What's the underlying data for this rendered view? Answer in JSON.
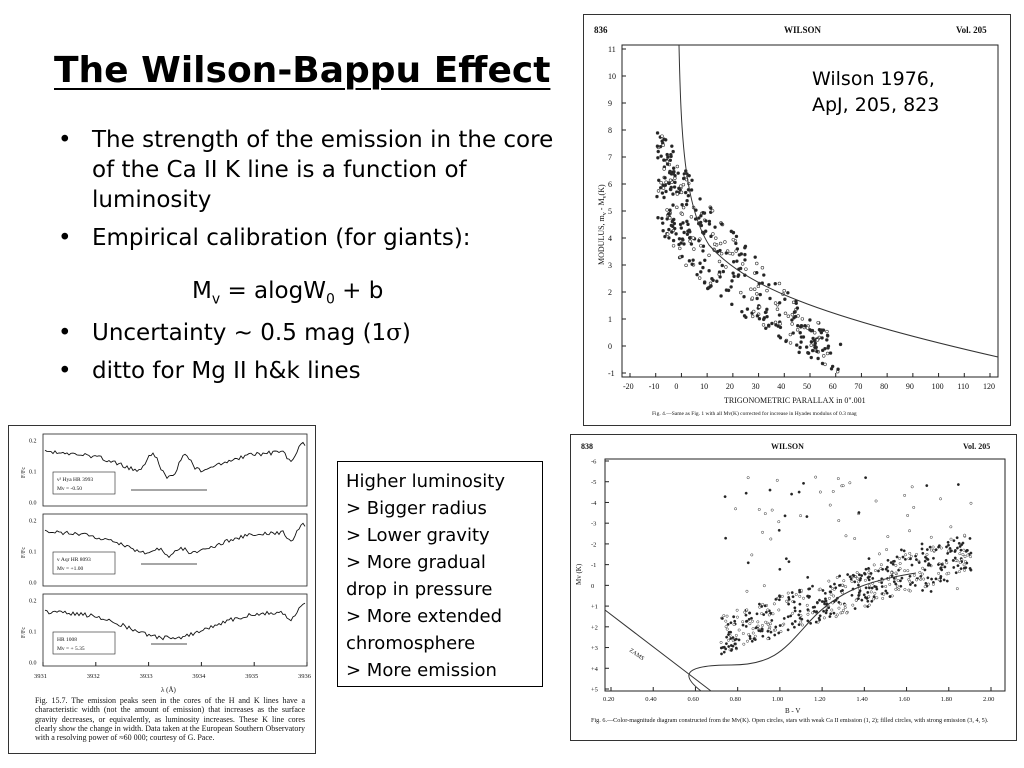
{
  "title": "The Wilson-Bappu Effect",
  "bullets": [
    "The strength of the emission in the core of the Ca II K line is a function of luminosity",
    "Empirical calibration (for giants):",
    "Uncertainty ~ 0.5 mag (1",
    "ditto for Mg II h&k lines"
  ],
  "bullet_char": "•",
  "formula": {
    "lhs": "M",
    "lhs_sub": "v",
    "mid": " = alogW",
    "mid_sub": "0",
    "rhs": " + b"
  },
  "uncertainty_sigma": "σ",
  "uncertainty_close": ")",
  "citation": "Wilson 1976,\nApJ, 205, 823",
  "luminosity_box": [
    "Higher luminosity",
    "> Bigger radius",
    "> Lower gravity",
    "> More gradual",
    "drop in pressure",
    "> More extended",
    "chromosphere",
    "> More emission"
  ],
  "fig_top": {
    "page": "836",
    "header": "WILSON",
    "vol": "Vol. 205",
    "ylabel": "MODULUS, m",
    "ylabel2": "v",
    "ylabel3": " - M",
    "ylabel4": "v",
    "ylabel5": "(K)",
    "xlabel": "TRIGONOMETRIC PARALLAX in 0\".001",
    "caption": "Fig. 4.—Same as Fig. 1 with all Mv(K) corrected for increase in Hyades modulus of 0.3 mag",
    "xticks": [
      "-20",
      "-10",
      "0",
      "10",
      "20",
      "30",
      "40",
      "50",
      "60",
      "70",
      "80",
      "90",
      "100",
      "110",
      "120"
    ],
    "yticks": [
      "11",
      "10",
      "9",
      "8",
      "7",
      "6",
      "5",
      "4",
      "3",
      "2",
      "1",
      "0",
      "-1"
    ]
  },
  "fig_bottom": {
    "page": "838",
    "header": "WILSON",
    "vol": "Vol. 205",
    "ylabel": "Mv (K)",
    "xlabel": "B - V",
    "zams": "ZAMS",
    "caption": "Fig. 6.—Color-magnitude diagram constructed from the Mv(K). Open circles, stars with weak Ca II emission (1, 2); filled circles, with strong emission (3, 4, 5).",
    "xticks": [
      "0.20",
      "0.40",
      "0.60",
      "0.80",
      "1.00",
      "1.20",
      "1.40",
      "1.60",
      "1.80",
      "2.00"
    ],
    "yticks": [
      "-6",
      "-5",
      "-4",
      "-3",
      "-2",
      "-1",
      "0",
      "+1",
      "+2",
      "+3",
      "+4",
      "+5"
    ]
  },
  "fig_spectra": {
    "panels": [
      {
        "star": "ν² Hya  HR 3993",
        "mag": "Mv = -0.50"
      },
      {
        "star": "ν Aqr  HR 8093",
        "mag": "Mv = +1.00"
      },
      {
        "star": "HR 1008",
        "mag": "Mv = + 5.35"
      }
    ],
    "yticks": [
      "0.2",
      "0.1",
      "0.0"
    ],
    "ylabel": "F/Fc",
    "xticks": [
      "3931",
      "3932",
      "3933",
      "3934",
      "3935",
      "3936"
    ],
    "xlabel": "λ (Å)",
    "caption": "Fig. 15.7.   The emission peaks seen in the cores of the H and K lines have a characteristic width (not the amount of emission) that increases as the surface gravity decreases, or equivalently, as luminosity increases. These K line cores clearly show the change in width. Data taken at the European Southern Observatory with a resolving power of ≈60 000; courtesy of G. Pace."
  }
}
